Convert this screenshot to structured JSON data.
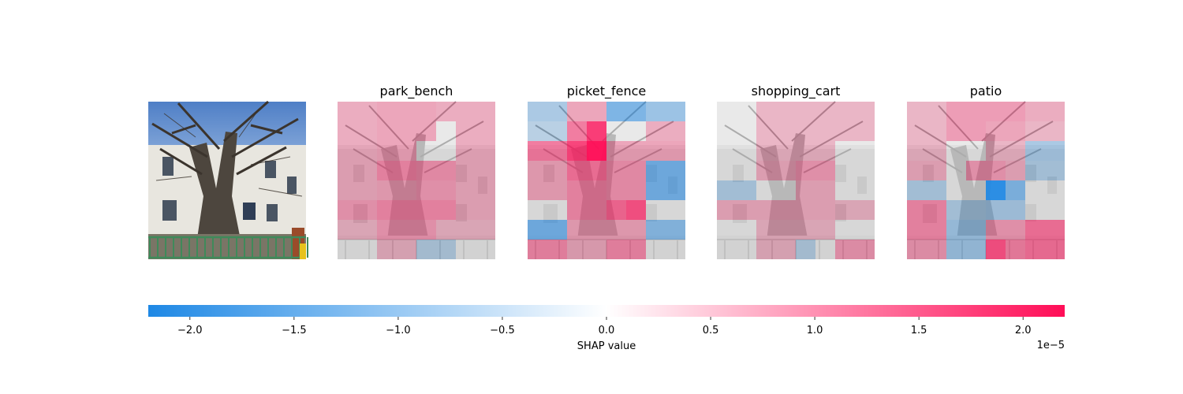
{
  "chart_data": {
    "type": "heatmap",
    "panels": [
      {
        "title": "",
        "kind": "photo"
      },
      {
        "title": "park_bench",
        "kind": "shap"
      },
      {
        "title": "picket_fence",
        "kind": "shap"
      },
      {
        "title": "shopping_cart",
        "kind": "shap"
      },
      {
        "title": "patio",
        "kind": "shap"
      }
    ],
    "grid_size": 8,
    "shap_values_x1e5": {
      "park_bench": [
        [
          0.2,
          0.2,
          0.3,
          0.3,
          0.3,
          0.2,
          0.2,
          0.2
        ],
        [
          0.2,
          0.2,
          0.3,
          0.3,
          0.3,
          0.0,
          0.2,
          0.2
        ],
        [
          0.2,
          0.2,
          0.3,
          0.3,
          0.0,
          0.0,
          0.2,
          0.2
        ],
        [
          0.2,
          0.2,
          0.6,
          0.6,
          0.5,
          0.5,
          0.2,
          0.2
        ],
        [
          0.2,
          0.2,
          0.3,
          0.3,
          0.4,
          0.4,
          0.2,
          0.2
        ],
        [
          0.4,
          0.4,
          0.6,
          0.6,
          0.6,
          0.6,
          0.2,
          0.2
        ],
        [
          0.1,
          0.1,
          0.4,
          0.4,
          0.4,
          0.1,
          0.1,
          0.1
        ],
        [
          0.0,
          0.0,
          0.1,
          0.1,
          -0.1,
          -0.1,
          0.0,
          0.0
        ]
      ],
      "picket_fence": [
        [
          -0.3,
          -0.3,
          0.3,
          0.3,
          -0.9,
          -0.9,
          -0.5,
          -0.5
        ],
        [
          -0.1,
          -0.1,
          0.8,
          1.6,
          0.0,
          0.0,
          0.2,
          0.2
        ],
        [
          0.8,
          0.8,
          1.5,
          2.1,
          0.3,
          0.3,
          0.3,
          0.3
        ],
        [
          0.3,
          0.3,
          0.9,
          0.9,
          0.5,
          0.5,
          -1.0,
          -1.0
        ],
        [
          0.3,
          0.3,
          0.6,
          0.6,
          0.5,
          0.5,
          -1.0,
          -1.0
        ],
        [
          0.0,
          0.0,
          0.6,
          0.6,
          1.0,
          1.3,
          0.0,
          0.0
        ],
        [
          -1.0,
          -1.0,
          0.3,
          0.3,
          0.3,
          0.3,
          -0.7,
          -0.7
        ],
        [
          0.6,
          0.6,
          0.2,
          0.2,
          0.6,
          0.6,
          0.0,
          0.0
        ]
      ],
      "shopping_cart": [
        [
          0.0,
          0.0,
          0.1,
          0.1,
          0.1,
          0.1,
          0.1,
          0.1
        ],
        [
          0.0,
          0.0,
          0.1,
          0.1,
          0.1,
          0.1,
          0.1,
          0.1
        ],
        [
          0.0,
          0.0,
          0.1,
          0.1,
          0.1,
          0.1,
          0.0,
          0.0
        ],
        [
          0.0,
          0.0,
          0.2,
          0.2,
          0.4,
          0.4,
          0.0,
          0.0
        ],
        [
          -0.2,
          -0.2,
          0.0,
          0.0,
          0.2,
          0.2,
          0.0,
          0.0
        ],
        [
          0.2,
          0.2,
          0.2,
          0.2,
          0.2,
          0.2,
          0.1,
          0.1
        ],
        [
          0.0,
          0.0,
          0.1,
          0.1,
          0.1,
          0.1,
          0.0,
          0.0
        ],
        [
          0.0,
          0.0,
          0.1,
          0.1,
          -0.1,
          0.0,
          0.4,
          0.4
        ]
      ],
      "patio": [
        [
          0.1,
          0.1,
          0.4,
          0.4,
          0.4,
          0.4,
          0.2,
          0.2
        ],
        [
          0.1,
          0.1,
          0.4,
          0.4,
          0.3,
          0.3,
          0.1,
          0.1
        ],
        [
          0.1,
          0.1,
          0.0,
          0.0,
          0.1,
          0.1,
          -0.3,
          -0.3
        ],
        [
          0.2,
          0.2,
          0.0,
          0.4,
          0.4,
          0.2,
          -0.2,
          -0.2
        ],
        [
          -0.2,
          -0.2,
          0.0,
          0.0,
          -2.0,
          -0.8,
          0.0,
          0.0
        ],
        [
          0.6,
          0.6,
          -0.2,
          -0.2,
          -0.3,
          -0.3,
          0.0,
          0.0
        ],
        [
          0.6,
          0.6,
          -0.4,
          -0.4,
          0.4,
          0.4,
          0.9,
          0.9
        ],
        [
          0.4,
          0.4,
          -0.4,
          -0.4,
          1.3,
          0.7,
          0.9,
          0.9
        ]
      ]
    },
    "colorbar": {
      "range": [
        -2.2,
        2.2
      ],
      "ticks": [
        -2.0,
        -1.5,
        -1.0,
        -0.5,
        0.0,
        0.5,
        1.0,
        1.5,
        2.0
      ],
      "tick_labels": [
        "−2.0",
        "−1.5",
        "−1.0",
        "−0.5",
        "0.0",
        "0.5",
        "1.0",
        "1.5",
        "2.0"
      ],
      "label": "SHAP value",
      "scale_label": "1e−5",
      "negative_color": "#1e88e5",
      "positive_color": "#ff0d57"
    }
  }
}
